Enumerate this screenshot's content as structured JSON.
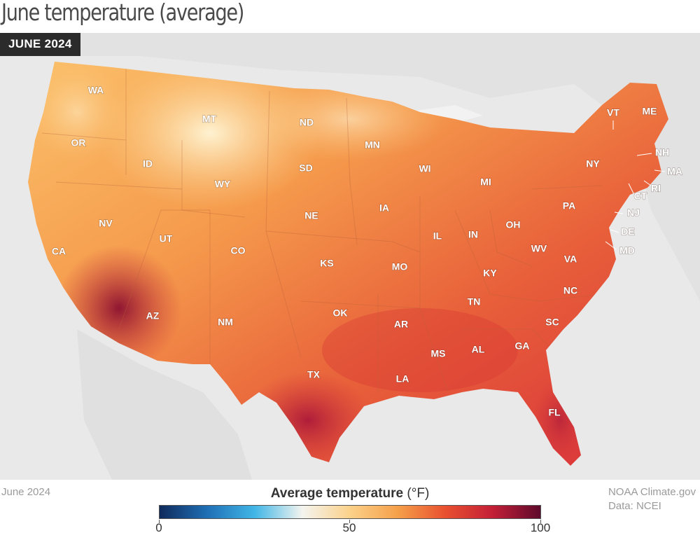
{
  "header": {
    "title": "June temperature (average)",
    "badge": "JUNE 2024"
  },
  "map": {
    "description_source": "NOAA Climate.gov",
    "state_labels": [
      "WA",
      "OR",
      "CA",
      "ID",
      "NV",
      "MT",
      "WY",
      "UT",
      "AZ",
      "CO",
      "NM",
      "ND",
      "SD",
      "NE",
      "KS",
      "OK",
      "TX",
      "MN",
      "IA",
      "MO",
      "AR",
      "LA",
      "WI",
      "IL",
      "MS",
      "MI",
      "IN",
      "KY",
      "TN",
      "AL",
      "OH",
      "WV",
      "GA",
      "FL",
      "PA",
      "VA",
      "NC",
      "SC",
      "NY",
      "VT",
      "ME",
      "NH",
      "MA",
      "RI",
      "CT",
      "NJ",
      "DE",
      "MD"
    ]
  },
  "legend": {
    "title_bold": "Average temperature",
    "unit": "(°F)",
    "ticks": [
      "0",
      "50",
      "100"
    ],
    "colors": [
      "#0f2a5c",
      "#1f6fb5",
      "#41b6e6",
      "#f4f4ef",
      "#fbd18a",
      "#f5a04a",
      "#e8502f",
      "#c31f37",
      "#5e0a2c"
    ]
  },
  "footer": {
    "left": "June 2024",
    "credit": "NOAA Climate.gov",
    "source": "Data: NCEI"
  }
}
